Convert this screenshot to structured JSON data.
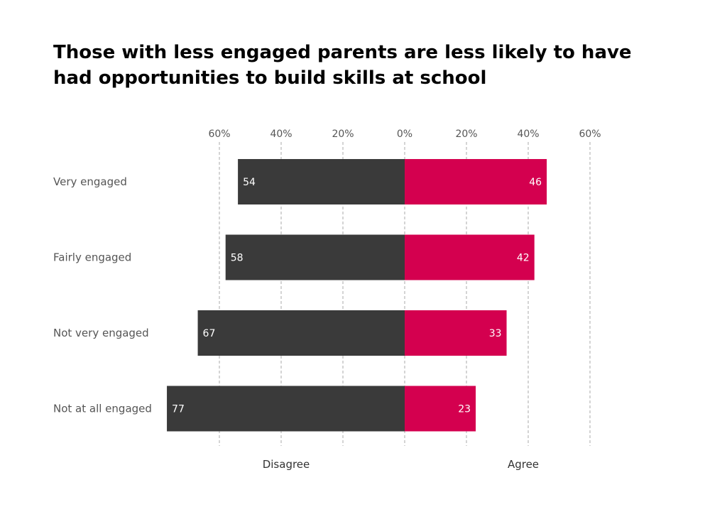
{
  "title_lines": [
    "Those with less engaged parents are less likely to have",
    "had opportunities to build skills at school"
  ],
  "colors": {
    "disagree": "#3a3a3a",
    "agree": "#d4004f",
    "grid": "#aaaaaa"
  },
  "chart_data": {
    "type": "bar",
    "orientation": "horizontal-diverging",
    "title": "Those with less engaged parents are less likely to have had opportunities to build skills at school",
    "categories": [
      "Very engaged",
      "Fairly engaged",
      "Not very engaged",
      "Not at all engaged"
    ],
    "series": [
      {
        "name": "Disagree",
        "values": [
          54,
          58,
          67,
          77
        ]
      },
      {
        "name": "Agree",
        "values": [
          46,
          42,
          33,
          23
        ]
      }
    ],
    "x_ticks": [
      "60%",
      "40%",
      "20%",
      "0%",
      "20%",
      "40%",
      "60%"
    ],
    "x_tick_values": [
      -60,
      -40,
      -20,
      0,
      20,
      40,
      60
    ],
    "xlim": [
      -60,
      60
    ],
    "grid": true,
    "side_labels": {
      "left": "Disagree",
      "right": "Agree"
    }
  }
}
